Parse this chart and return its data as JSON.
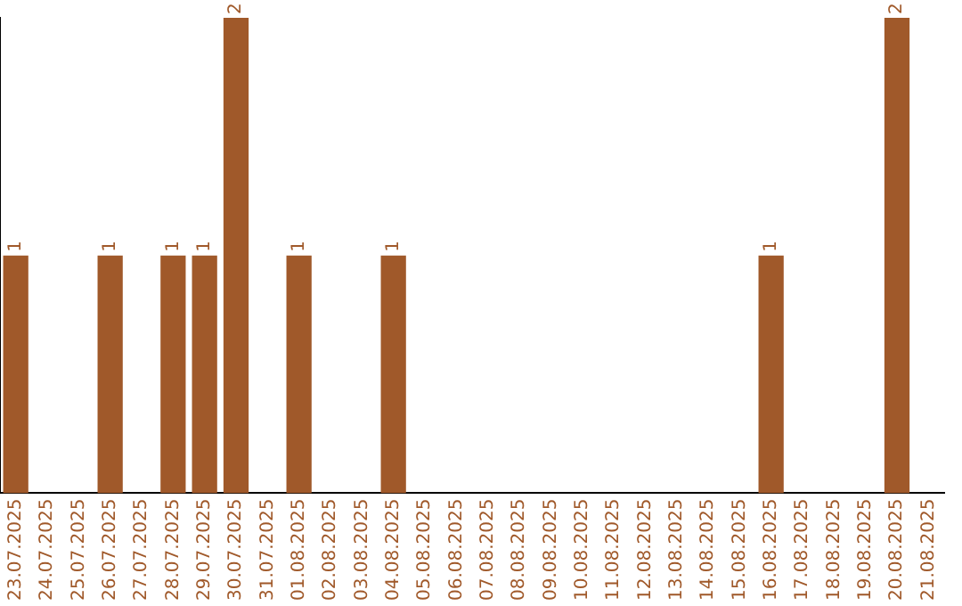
{
  "chart_data": {
    "type": "bar",
    "categories": [
      "23.07.2025",
      "24.07.2025",
      "25.07.2025",
      "26.07.2025",
      "27.07.2025",
      "28.07.2025",
      "29.07.2025",
      "30.07.2025",
      "31.07.2025",
      "01.08.2025",
      "02.08.2025",
      "03.08.2025",
      "04.08.2025",
      "05.08.2025",
      "06.08.2025",
      "07.08.2025",
      "08.08.2025",
      "09.08.2025",
      "10.08.2025",
      "11.08.2025",
      "12.08.2025",
      "13.08.2025",
      "14.08.2025",
      "15.08.2025",
      "16.08.2025",
      "17.08.2025",
      "18.08.2025",
      "19.08.2025",
      "20.08.2025",
      "21.08.2025"
    ],
    "values": [
      1,
      0,
      0,
      1,
      0,
      1,
      1,
      2,
      0,
      1,
      0,
      0,
      1,
      0,
      0,
      0,
      0,
      0,
      0,
      0,
      0,
      0,
      0,
      0,
      1,
      0,
      0,
      0,
      2,
      0
    ],
    "value_labels": [
      "1",
      null,
      null,
      "1",
      null,
      "1",
      "1",
      "2",
      null,
      "1",
      null,
      null,
      "1",
      null,
      null,
      null,
      null,
      null,
      null,
      null,
      null,
      null,
      null,
      null,
      "1",
      null,
      null,
      null,
      "2",
      null
    ],
    "color": "#a0592a",
    "ylim": [
      0,
      2
    ],
    "tick_labels": "x",
    "grid": false,
    "legend": false
  }
}
